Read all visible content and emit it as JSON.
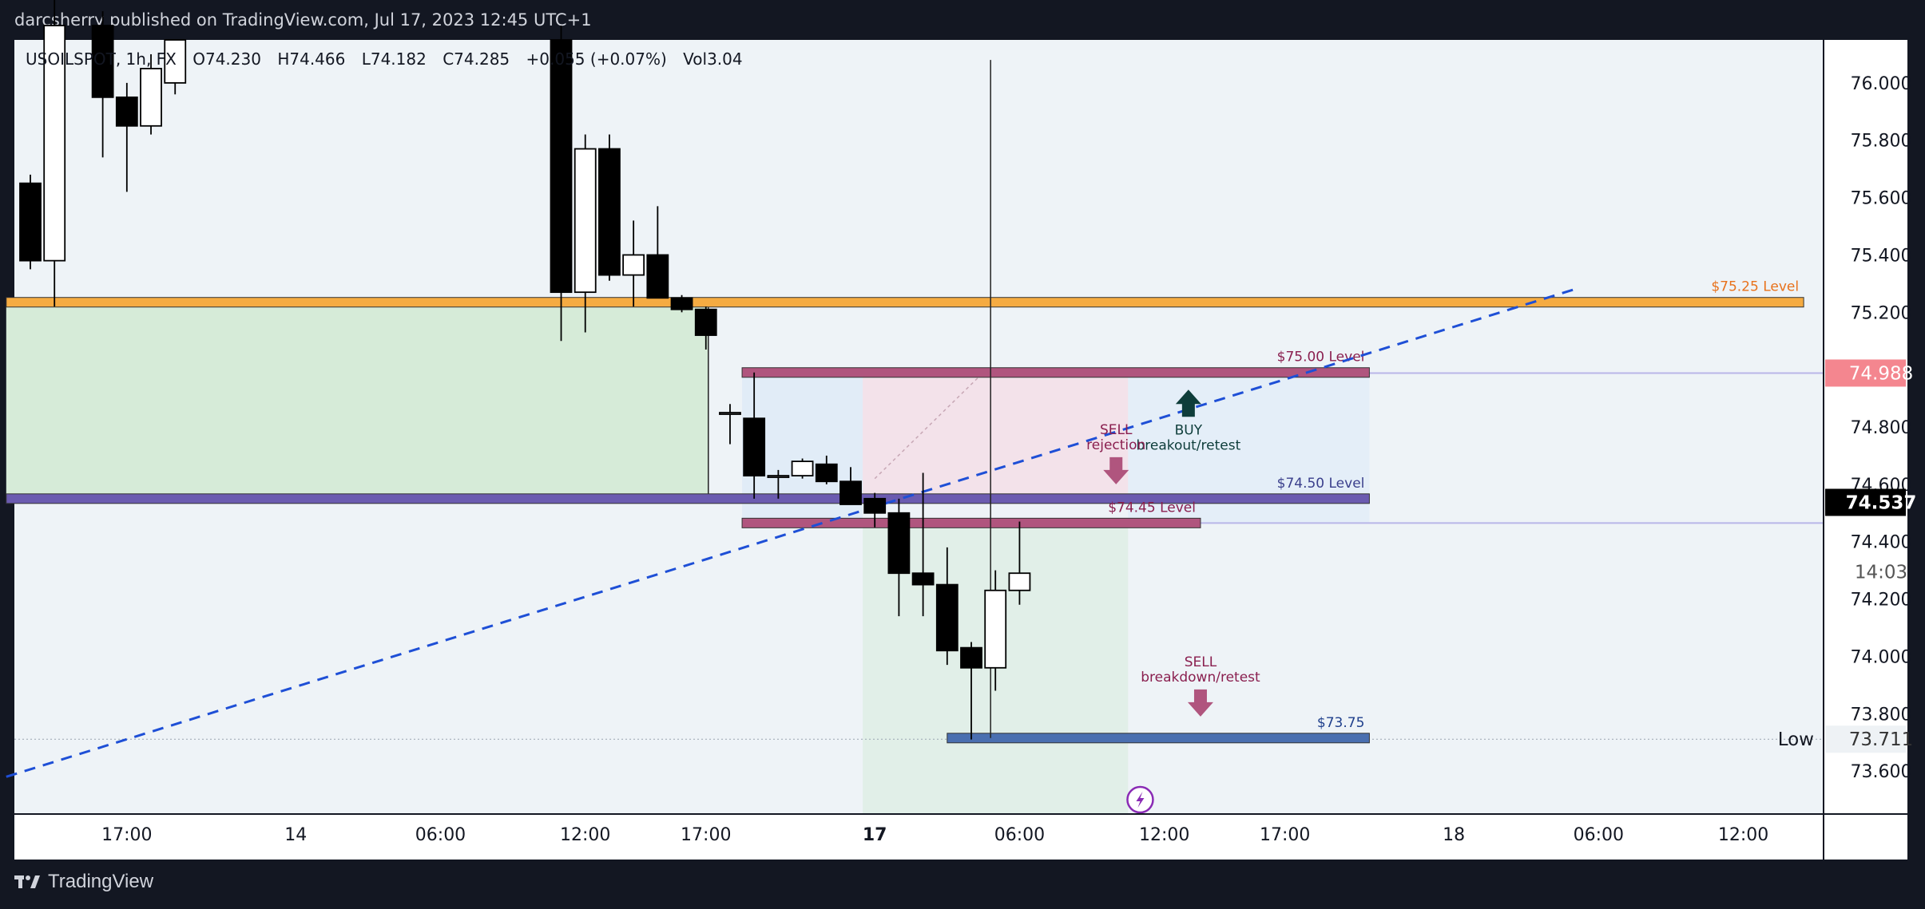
{
  "header": {
    "published": "darcsherry published on TradingView.com, Jul 17, 2023 12:45 UTC+1"
  },
  "legend": {
    "symbol": "USOILSPOT, 1h, FX",
    "open": "O74.230",
    "high": "H74.466",
    "low": "L74.182",
    "close": "C74.285",
    "change": "+0.055 (+0.07%)",
    "volume": "Vol3.04"
  },
  "footer": {
    "brand": "TradingView"
  },
  "colors": {
    "background": "#ffffff",
    "frame": "#131722",
    "candle_up": "#ffffff",
    "candle_down": "#000000",
    "level_75_25": "#f5ab42",
    "level_75_00": "#b0557e",
    "level_74_50": "#6b5bb0",
    "level_74_45": "#b0557e",
    "level_73_75": "#4a6fb0",
    "trendline": "#1e4fd6",
    "last_price_bg": "#000000",
    "marker_price_bg": "#f4868f"
  },
  "chart_data": {
    "type": "candlestick",
    "symbol": "USOILSPOT",
    "timeframe": "1h",
    "ylim": [
      73.45,
      76.15
    ],
    "y_ticks": [
      "76.000",
      "75.800",
      "75.600",
      "75.400",
      "75.200",
      "74.800",
      "74.600",
      "74.400",
      "74.200",
      "74.000",
      "73.800",
      "73.600"
    ],
    "x_ticks": [
      {
        "label": "17:00",
        "t": 4
      },
      {
        "label": "14",
        "t": 11
      },
      {
        "label": "06:00",
        "t": 17
      },
      {
        "label": "12:00",
        "t": 23
      },
      {
        "label": "17:00",
        "t": 28
      },
      {
        "label": "17",
        "t": 35
      },
      {
        "label": "06:00",
        "t": 41
      },
      {
        "label": "12:00",
        "t": 47
      },
      {
        "label": "17:00",
        "t": 52
      },
      {
        "label": "18",
        "t": 59
      },
      {
        "label": "06:00",
        "t": 65
      },
      {
        "label": "12:00",
        "t": 71
      }
    ],
    "xlim": [
      0,
      73
    ],
    "candles": [
      {
        "t": 0,
        "o": 75.65,
        "h": 75.68,
        "l": 75.35,
        "c": 75.38
      },
      {
        "t": 1,
        "o": 75.38,
        "h": 76.3,
        "l": 75.22,
        "c": 76.2
      },
      {
        "t": 3,
        "o": 76.2,
        "h": 76.25,
        "l": 75.74,
        "c": 75.95
      },
      {
        "t": 4,
        "o": 75.95,
        "h": 76.0,
        "l": 75.62,
        "c": 75.85
      },
      {
        "t": 5,
        "o": 75.85,
        "h": 76.1,
        "l": 75.82,
        "c": 76.05
      },
      {
        "t": 6,
        "o": 76.0,
        "h": 76.15,
        "l": 75.96,
        "c": 76.15
      },
      {
        "t": 22,
        "o": 76.15,
        "h": 76.2,
        "l": 75.1,
        "c": 75.27
      },
      {
        "t": 23,
        "o": 75.27,
        "h": 75.82,
        "l": 75.13,
        "c": 75.77
      },
      {
        "t": 24,
        "o": 75.77,
        "h": 75.82,
        "l": 75.31,
        "c": 75.33
      },
      {
        "t": 25,
        "o": 75.33,
        "h": 75.52,
        "l": 75.22,
        "c": 75.4
      },
      {
        "t": 26,
        "o": 75.4,
        "h": 75.57,
        "l": 75.25,
        "c": 75.25
      },
      {
        "t": 27,
        "o": 75.25,
        "h": 75.26,
        "l": 75.2,
        "c": 75.21
      },
      {
        "t": 28,
        "o": 75.21,
        "h": 75.22,
        "l": 75.07,
        "c": 75.12
      },
      {
        "t": 29,
        "o": 74.85,
        "h": 74.88,
        "l": 74.74,
        "c": 74.85
      },
      {
        "t": 30,
        "o": 74.83,
        "h": 74.99,
        "l": 74.55,
        "c": 74.63
      },
      {
        "t": 31,
        "o": 74.63,
        "h": 74.65,
        "l": 74.55,
        "c": 74.63
      },
      {
        "t": 32,
        "o": 74.63,
        "h": 74.69,
        "l": 74.62,
        "c": 74.68
      },
      {
        "t": 33,
        "o": 74.67,
        "h": 74.7,
        "l": 74.6,
        "c": 74.61
      },
      {
        "t": 34,
        "o": 74.61,
        "h": 74.66,
        "l": 74.53,
        "c": 74.53
      },
      {
        "t": 35,
        "o": 74.55,
        "h": 74.57,
        "l": 74.45,
        "c": 74.5
      },
      {
        "t": 36,
        "o": 74.5,
        "h": 74.55,
        "l": 74.14,
        "c": 74.29
      },
      {
        "t": 37,
        "o": 74.29,
        "h": 74.64,
        "l": 74.14,
        "c": 74.25
      },
      {
        "t": 38,
        "o": 74.25,
        "h": 74.38,
        "l": 73.97,
        "c": 74.02
      },
      {
        "t": 39,
        "o": 74.03,
        "h": 74.05,
        "l": 73.71,
        "c": 73.96
      },
      {
        "t": 40,
        "o": 73.96,
        "h": 74.3,
        "l": 73.88,
        "c": 74.23
      },
      {
        "t": 41,
        "o": 74.23,
        "h": 74.47,
        "l": 74.18,
        "c": 74.29
      }
    ],
    "levels": [
      {
        "label": "$75.25 Level",
        "value": 75.235,
        "t0": -1,
        "t1": 73.5,
        "color": "#f5ab42",
        "text_color": "#e8721c"
      },
      {
        "label": "$75.00 Level",
        "value": 74.99,
        "t0": 29.5,
        "t1": 55.5,
        "color": "#b0557e",
        "text_color": "#8a1f4f"
      },
      {
        "label": "$74.50 Level",
        "value": 74.55,
        "t0": -1,
        "t1": 55.5,
        "color": "#6b5bb0",
        "text_color": "#3a3f8c"
      },
      {
        "label": "$74.45 Level",
        "value": 74.465,
        "t0": 29.5,
        "t1": 48.5,
        "color": "#b0557e",
        "text_color": "#8a1f4f"
      },
      {
        "label": "$73.75",
        "value": 73.715,
        "t0": 38.0,
        "t1": 55.5,
        "color": "#4a6fb0",
        "text_color": "#1f3f8c"
      }
    ],
    "annotations": [
      {
        "lines": [
          "BUY",
          "breakout/retest"
        ],
        "t": 48,
        "value": 74.93,
        "arrow": "up",
        "color": "#0e3d3a"
      },
      {
        "lines": [
          "SELL",
          "rejection"
        ],
        "t": 45,
        "value": 74.6,
        "arrow": "down",
        "color": "#8a1f4f"
      },
      {
        "lines": [
          "SELL",
          "breakdown/retest"
        ],
        "t": 48.5,
        "value": 73.79,
        "arrow": "down",
        "color": "#8a1f4f"
      }
    ],
    "trendline": {
      "p0": {
        "t": -1,
        "v": 73.58
      },
      "p1": {
        "t": 64,
        "v": 75.28
      }
    },
    "price_labels": [
      {
        "text": "74.988",
        "value": 74.988,
        "bg": "#f4868f",
        "fg": "#ffffff"
      },
      {
        "text": "74.537",
        "value": 74.537,
        "bg": "#000000",
        "fg": "#ffffff"
      },
      {
        "text": "14:03",
        "value": 74.295,
        "bg": "#ffffff",
        "fg": "#555555"
      },
      {
        "text": "73.711",
        "value": 73.711,
        "bg": "#eef2f5",
        "fg": "#333333"
      }
    ],
    "low_marker": {
      "label": "Low",
      "value": 73.711
    }
  }
}
